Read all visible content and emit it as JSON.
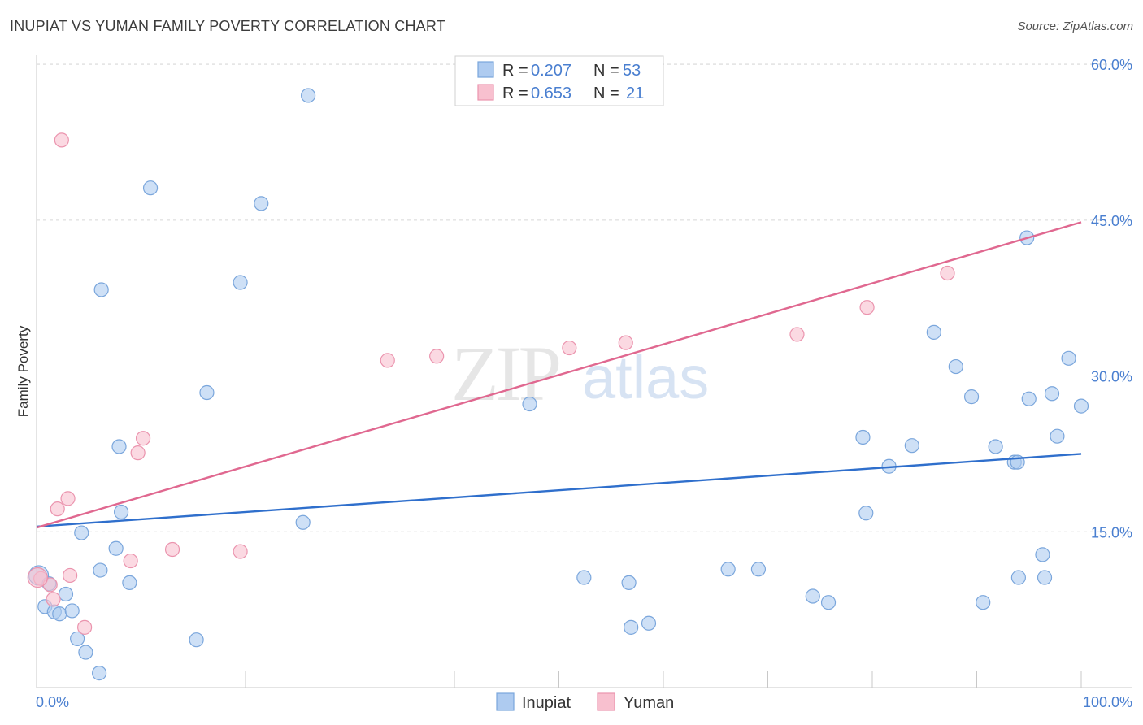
{
  "title": "INUPIAT VS YUMAN FAMILY POVERTY CORRELATION CHART",
  "source": "Source: ZipAtlas.com",
  "watermark": {
    "zip": "ZIP",
    "atlas": "atlas"
  },
  "colors": {
    "inupiat_fill": "#aecbf0",
    "inupiat_stroke": "#7aa6dc",
    "inupiat_line": "#2f6fcc",
    "yuman_fill": "#f8c0cf",
    "yuman_stroke": "#eb94ae",
    "yuman_line": "#e06890",
    "axis_label": "#4a7fd0",
    "grid": "#d8d8d8"
  },
  "legend": {
    "rows": [
      {
        "r_label": "R = ",
        "r_value": "0.207",
        "n_label": "N = ",
        "n_value": "53"
      },
      {
        "r_label": "R = ",
        "r_value": "0.653",
        "n_label": "N = ",
        "n_value": "21"
      }
    ]
  },
  "chart_data": {
    "type": "scatter",
    "title": "INUPIAT VS YUMAN FAMILY POVERTY CORRELATION CHART",
    "xlabel": "",
    "ylabel": "Family Poverty",
    "xlim": [
      0,
      100
    ],
    "ylim": [
      0,
      62
    ],
    "x_tick_labels": [
      "0.0%",
      "100.0%"
    ],
    "y_ticks": [
      15,
      30,
      45,
      60
    ],
    "y_tick_labels": [
      "15.0%",
      "30.0%",
      "45.0%",
      "60.0%"
    ],
    "grid": "horizontal dashed",
    "legend_position": "top-center",
    "series": [
      {
        "name": "Inupiat",
        "r": 0.207,
        "n": 53,
        "trend": [
          [
            0,
            15.5
          ],
          [
            100,
            22.5
          ]
        ],
        "points": [
          [
            0.2,
            10.8
          ],
          [
            1.2,
            10.0
          ],
          [
            0.8,
            7.8
          ],
          [
            1.7,
            7.3
          ],
          [
            2.2,
            7.1
          ],
          [
            3.4,
            7.4
          ],
          [
            2.8,
            9.0
          ],
          [
            3.9,
            4.7
          ],
          [
            4.7,
            3.4
          ],
          [
            6.1,
            11.3
          ],
          [
            4.3,
            14.9
          ],
          [
            6.2,
            38.3
          ],
          [
            7.6,
            13.4
          ],
          [
            7.9,
            23.2
          ],
          [
            8.1,
            16.9
          ],
          [
            8.9,
            10.1
          ],
          [
            10.9,
            48.1
          ],
          [
            6.0,
            1.4
          ],
          [
            15.3,
            4.6
          ],
          [
            16.3,
            28.4
          ],
          [
            19.5,
            39.0
          ],
          [
            21.5,
            46.6
          ],
          [
            25.5,
            15.9
          ],
          [
            26.0,
            57.0
          ],
          [
            47.2,
            27.3
          ],
          [
            52.4,
            10.6
          ],
          [
            56.7,
            10.1
          ],
          [
            56.9,
            5.8
          ],
          [
            58.6,
            6.2
          ],
          [
            66.2,
            11.4
          ],
          [
            69.1,
            11.4
          ],
          [
            74.3,
            8.8
          ],
          [
            75.8,
            8.2
          ],
          [
            79.1,
            24.1
          ],
          [
            79.4,
            16.8
          ],
          [
            81.6,
            21.3
          ],
          [
            83.8,
            23.3
          ],
          [
            85.9,
            34.2
          ],
          [
            88.0,
            30.9
          ],
          [
            89.5,
            28.0
          ],
          [
            90.6,
            8.2
          ],
          [
            91.8,
            23.2
          ],
          [
            93.6,
            21.7
          ],
          [
            93.9,
            21.7
          ],
          [
            94.0,
            10.6
          ],
          [
            94.8,
            43.3
          ],
          [
            95.0,
            27.8
          ],
          [
            96.3,
            12.8
          ],
          [
            96.5,
            10.6
          ],
          [
            97.2,
            28.3
          ],
          [
            97.7,
            24.2
          ],
          [
            98.8,
            31.7
          ],
          [
            100.0,
            27.1
          ]
        ]
      },
      {
        "name": "Yuman",
        "r": 0.653,
        "n": 21,
        "trend": [
          [
            0,
            15.4
          ],
          [
            100,
            44.8
          ]
        ],
        "points": [
          [
            0.4,
            10.5
          ],
          [
            1.3,
            9.9
          ],
          [
            1.6,
            8.5
          ],
          [
            2.0,
            17.2
          ],
          [
            2.4,
            52.7
          ],
          [
            3.0,
            18.2
          ],
          [
            3.2,
            10.8
          ],
          [
            4.6,
            5.8
          ],
          [
            9.7,
            22.6
          ],
          [
            10.2,
            24.0
          ],
          [
            9.0,
            12.2
          ],
          [
            13.0,
            13.3
          ],
          [
            19.5,
            13.1
          ],
          [
            33.6,
            31.5
          ],
          [
            38.3,
            31.9
          ],
          [
            51.0,
            32.7
          ],
          [
            56.4,
            33.2
          ],
          [
            72.8,
            34.0
          ],
          [
            79.5,
            36.6
          ],
          [
            87.2,
            39.9
          ],
          [
            0.1,
            10.6
          ]
        ]
      }
    ]
  }
}
